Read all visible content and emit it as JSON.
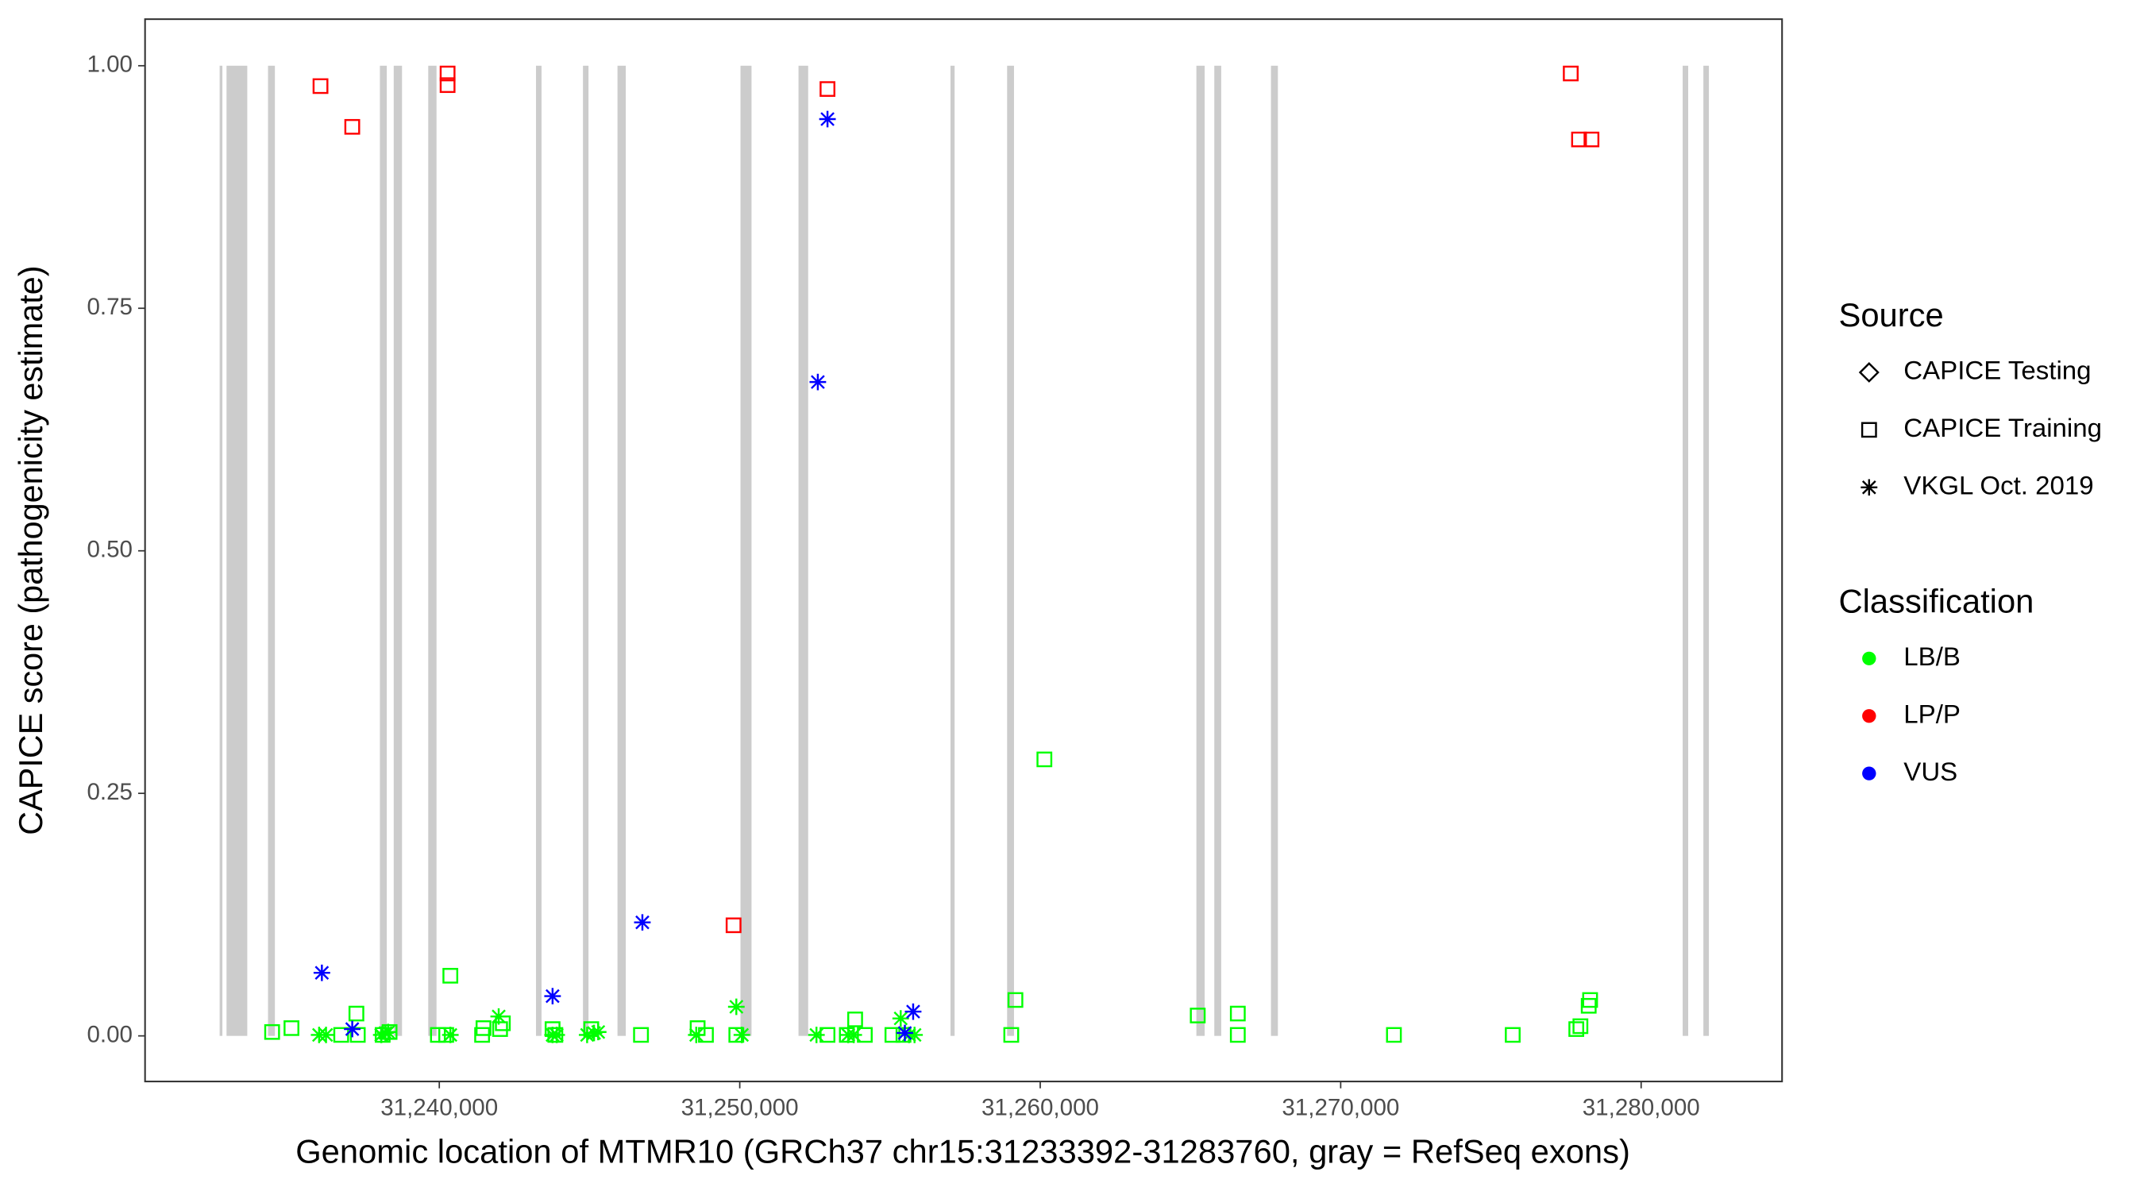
{
  "chart_data": {
    "type": "scatter",
    "x_label": "Genomic location of MTMR10 (GRCh37 chr15:31233392-31283760, gray = RefSeq exons)",
    "y_label": "CAPICE score (pathogenicity estimate)",
    "xlim": [
      31230207,
      31284690
    ],
    "ylim": [
      -0.047,
      1.048
    ],
    "xticks": [
      {
        "value": 31240000,
        "label": "31,240,000"
      },
      {
        "value": 31250000,
        "label": "31,250,000"
      },
      {
        "value": 31260000,
        "label": "31,260,000"
      },
      {
        "value": 31270000,
        "label": "31,270,000"
      },
      {
        "value": 31280000,
        "label": "31,280,000"
      }
    ],
    "yticks": [
      {
        "value": 0,
        "label": "0.00"
      },
      {
        "value": 0.25,
        "label": "0.25"
      },
      {
        "value": 0.5,
        "label": "0.50"
      },
      {
        "value": 0.75,
        "label": "0.75"
      },
      {
        "value": 1,
        "label": "1.00"
      }
    ],
    "exon_color": "#cccccc",
    "exon_span": [
      0,
      1
    ],
    "exons": [
      [
        31232689,
        31232781
      ],
      [
        31232919,
        31233609
      ],
      [
        31234299,
        31234528
      ],
      [
        31238023,
        31238253
      ],
      [
        31238483,
        31238759
      ],
      [
        31239632,
        31239908
      ],
      [
        31243219,
        31243402
      ],
      [
        31244782,
        31244966
      ],
      [
        31245931,
        31246207
      ],
      [
        31250024,
        31250391
      ],
      [
        31251955,
        31252277
      ],
      [
        31257013,
        31257151
      ],
      [
        31258898,
        31259127
      ],
      [
        31265197,
        31265473
      ],
      [
        31265794,
        31266024
      ],
      [
        31267680,
        31267910
      ],
      [
        31281382,
        31281566
      ],
      [
        31282071,
        31282255
      ]
    ],
    "legends": {
      "source": {
        "title": "Source",
        "entries": [
          {
            "name": "CAPICE Testing",
            "shape": "diamond"
          },
          {
            "name": "CAPICE Training",
            "shape": "square"
          },
          {
            "name": "VKGL Oct. 2019",
            "shape": "asterisk"
          }
        ]
      },
      "classification": {
        "title": "Classification",
        "entries": [
          {
            "name": "LB/B",
            "color": "#00ff00"
          },
          {
            "name": "LP/P",
            "color": "#ff0000"
          },
          {
            "name": "VUS",
            "color": "#0000ff"
          }
        ]
      }
    },
    "series": [
      {
        "source": "CAPICE Training",
        "classification": "LB/B",
        "x": [
          31234436,
          31235080,
          31236735,
          31237241,
          31237287,
          31238115,
          31238345,
          31239954,
          31240230,
          31240368,
          31241425,
          31241471,
          31242023,
          31242115,
          31243770,
          31243862,
          31245058,
          31246713,
          31248598,
          31248874,
          31249886,
          31252920,
          31253564,
          31253840,
          31254162,
          31255081,
          31255449,
          31259036,
          31259174,
          31260139,
          31265243,
          31266576,
          31266576,
          31271772,
          31275726,
          31277842,
          31277979,
          31278255,
          31278301
        ],
        "y": [
          0.004,
          0.008,
          0.001,
          0.023,
          0.001,
          0.001,
          0.004,
          0.001,
          0.001,
          0.062,
          0.001,
          0.008,
          0.007,
          0.013,
          0.007,
          0.001,
          0.007,
          0.001,
          0.008,
          0.001,
          0.001,
          0.001,
          0.001,
          0.017,
          0.001,
          0.001,
          0.001,
          0.001,
          0.037,
          0.285,
          0.021,
          0.023,
          0.001,
          0.001,
          0.001,
          0.007,
          0.01,
          0.031,
          0.037
        ]
      },
      {
        "source": "VKGL Oct. 2019",
        "classification": "LB/B",
        "x": [
          31236000,
          31236230,
          31238069,
          31238207,
          31238299,
          31240368,
          31241977,
          31243770,
          31243908,
          31244920,
          31245150,
          31245288,
          31248552,
          31249886,
          31250070,
          31252553,
          31253610,
          31253794,
          31255357,
          31255633,
          31255817
        ],
        "y": [
          0.001,
          0.001,
          0.001,
          0.003,
          0.004,
          0.001,
          0.02,
          0.001,
          0.001,
          0.001,
          0.003,
          0.004,
          0.001,
          0.03,
          0.001,
          0.001,
          0.001,
          0.001,
          0.018,
          0.001,
          0.001
        ]
      },
      {
        "source": "CAPICE Training",
        "classification": "LP/P",
        "x": [
          31236046,
          31237103,
          31240276,
          31240276,
          31252920,
          31249794,
          31277657,
          31277933,
          31278347
        ],
        "y": [
          0.979,
          0.937,
          0.992,
          0.98,
          0.976,
          0.114,
          0.992,
          0.924,
          0.924
        ]
      },
      {
        "source": "VKGL Oct. 2019",
        "classification": "VUS",
        "x": [
          31236092,
          31237103,
          31243770,
          31246759,
          31252598,
          31252920,
          31255771,
          31255495
        ],
        "y": [
          0.065,
          0.007,
          0.041,
          0.117,
          0.674,
          0.945,
          0.025,
          0.003
        ]
      }
    ]
  }
}
